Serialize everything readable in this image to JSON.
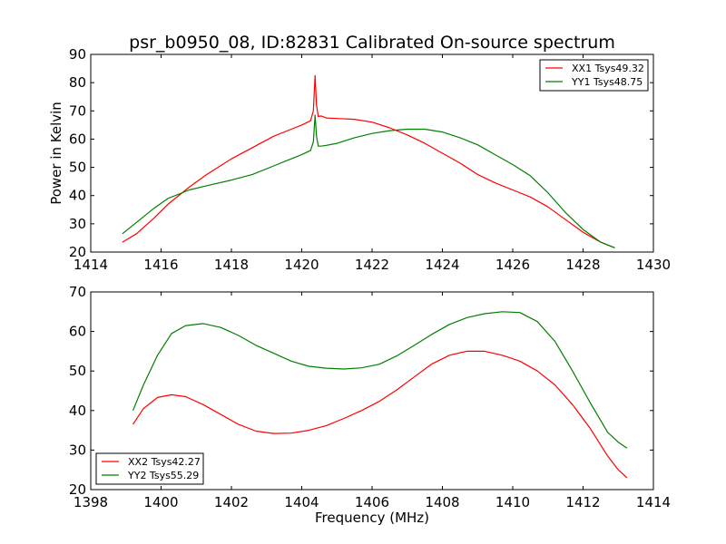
{
  "chart_data": [
    {
      "type": "line",
      "title": "psr_b0950_08, ID:82831 Calibrated On-source spectrum",
      "xlabel": "",
      "ylabel": "Power in Kelvin",
      "xlim": [
        1414,
        1430
      ],
      "ylim": [
        20,
        90
      ],
      "xticks": [
        1414,
        1416,
        1418,
        1420,
        1422,
        1424,
        1426,
        1428,
        1430
      ],
      "yticks": [
        20,
        30,
        40,
        50,
        60,
        70,
        80,
        90
      ],
      "legend": "top-right",
      "series": [
        {
          "name": "XX1 Tsys49.32",
          "color": "#ff0000",
          "x": [
            1414.9,
            1415.3,
            1415.8,
            1416.2,
            1416.8,
            1417.3,
            1418.0,
            1418.6,
            1419.2,
            1419.7,
            1420.0,
            1420.25,
            1420.33,
            1420.38,
            1420.42,
            1420.47,
            1420.55,
            1420.7,
            1421.0,
            1421.5,
            1422.0,
            1422.5,
            1423.0,
            1423.5,
            1424.0,
            1424.5,
            1425.0,
            1425.5,
            1426.0,
            1426.5,
            1427.0,
            1427.5,
            1428.0,
            1428.5,
            1428.9
          ],
          "y": [
            23.5,
            26.5,
            32,
            37,
            43,
            47.5,
            53,
            57,
            61,
            63.5,
            65,
            66.5,
            70,
            82.5,
            72,
            68,
            68.2,
            67.5,
            67.3,
            67,
            66,
            64,
            61.5,
            58.5,
            55,
            51.5,
            47.5,
            44.5,
            42,
            39.5,
            36,
            31.5,
            27,
            23.5,
            21.5
          ]
        },
        {
          "name": "YY1 Tsys48.75",
          "color": "#008000",
          "x": [
            1414.9,
            1415.3,
            1415.8,
            1416.2,
            1416.8,
            1417.3,
            1418.0,
            1418.6,
            1419.2,
            1419.7,
            1420.0,
            1420.25,
            1420.33,
            1420.38,
            1420.42,
            1420.47,
            1420.55,
            1420.7,
            1421.0,
            1421.5,
            1422.0,
            1422.5,
            1423.0,
            1423.5,
            1424.0,
            1424.5,
            1425.0,
            1425.5,
            1426.0,
            1426.5,
            1427.0,
            1427.5,
            1428.0,
            1428.5,
            1428.9
          ],
          "y": [
            26.5,
            30.5,
            35.5,
            39,
            42,
            43.5,
            45.5,
            47.5,
            50.5,
            53,
            54.5,
            56,
            59,
            68.5,
            61,
            57.5,
            57.5,
            57.8,
            58.5,
            60.5,
            62,
            63,
            63.5,
            63.5,
            62.5,
            60.5,
            58,
            54.5,
            51,
            47,
            41,
            34,
            28,
            23.5,
            21.5
          ]
        }
      ]
    },
    {
      "type": "line",
      "title": "",
      "xlabel": "Frequency (MHz)",
      "ylabel": "",
      "xlim": [
        1398,
        1414
      ],
      "ylim": [
        20,
        70
      ],
      "xticks": [
        1398,
        1400,
        1402,
        1404,
        1406,
        1408,
        1410,
        1412,
        1414
      ],
      "yticks": [
        20,
        30,
        40,
        50,
        60,
        70
      ],
      "legend": "bottom-left",
      "series": [
        {
          "name": "XX2 Tsys42.27",
          "color": "#ff0000",
          "x": [
            1399.2,
            1399.5,
            1399.9,
            1400.3,
            1400.7,
            1401.2,
            1401.7,
            1402.2,
            1402.7,
            1403.2,
            1403.7,
            1404.2,
            1404.7,
            1405.2,
            1405.7,
            1406.2,
            1406.7,
            1407.2,
            1407.7,
            1408.2,
            1408.7,
            1409.2,
            1409.7,
            1410.2,
            1410.7,
            1411.2,
            1411.7,
            1412.2,
            1412.7,
            1413.0,
            1413.25
          ],
          "y": [
            36.5,
            40.5,
            43.3,
            44,
            43.5,
            41.5,
            39,
            36.5,
            34.8,
            34.2,
            34.3,
            35,
            36.2,
            38,
            40,
            42.3,
            45.2,
            48.5,
            51.8,
            54,
            55,
            55,
            54,
            52.5,
            50,
            46.5,
            41.5,
            35.5,
            28.5,
            25,
            23
          ]
        },
        {
          "name": "YY2 Tsys55.29",
          "color": "#008000",
          "x": [
            1399.2,
            1399.5,
            1399.9,
            1400.3,
            1400.7,
            1401.2,
            1401.7,
            1402.2,
            1402.7,
            1403.2,
            1403.7,
            1404.2,
            1404.7,
            1405.2,
            1405.7,
            1406.2,
            1406.7,
            1407.2,
            1407.7,
            1408.2,
            1408.7,
            1409.2,
            1409.7,
            1410.2,
            1410.7,
            1411.2,
            1411.7,
            1412.2,
            1412.7,
            1413.0,
            1413.25
          ],
          "y": [
            40,
            46.5,
            54,
            59.5,
            61.5,
            62,
            61,
            59,
            56.5,
            54.5,
            52.5,
            51.2,
            50.7,
            50.5,
            50.8,
            51.7,
            53.8,
            56.5,
            59.3,
            61.8,
            63.5,
            64.5,
            65,
            64.8,
            62.5,
            57.5,
            50,
            42,
            34.5,
            32,
            30.5
          ]
        }
      ]
    }
  ]
}
